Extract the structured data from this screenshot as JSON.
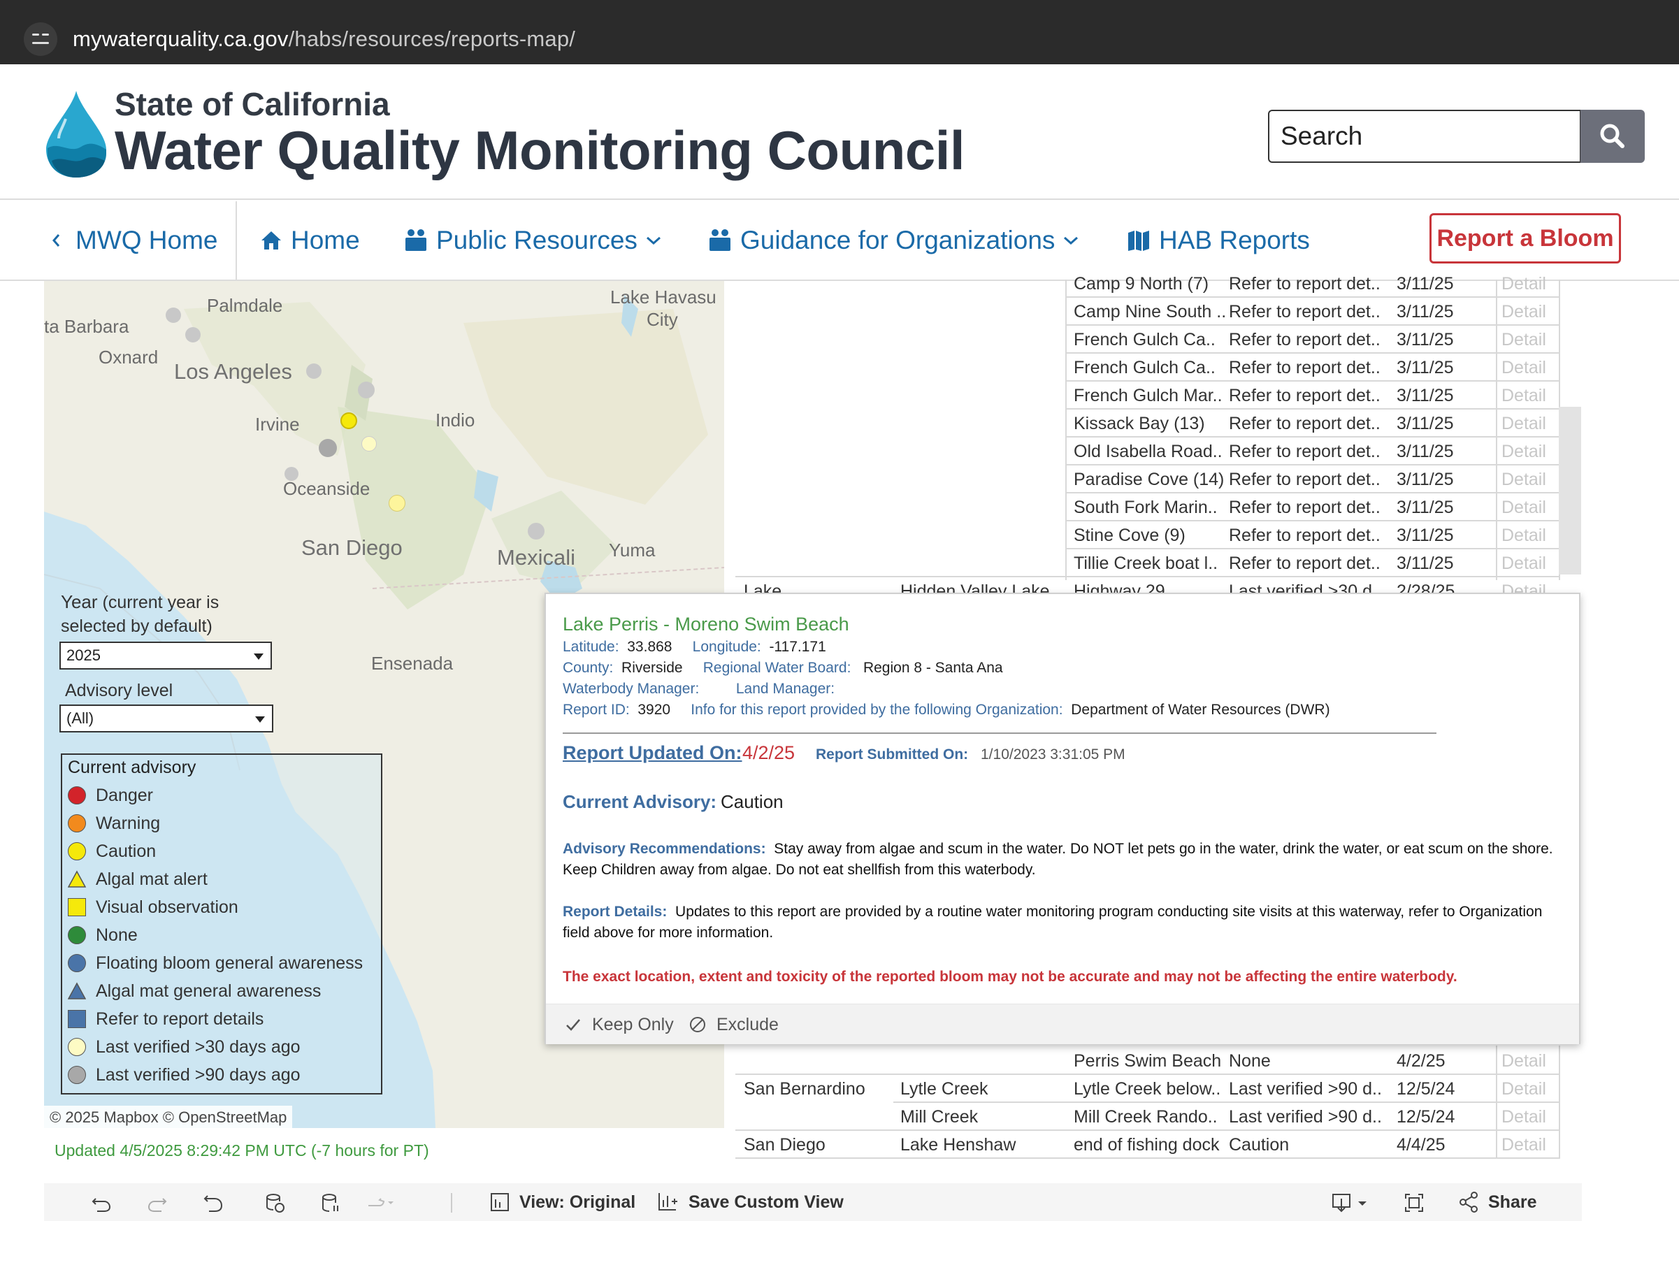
{
  "browser": {
    "url_host": "mywaterquality.ca.gov",
    "url_path": "/habs/resources/reports-map/"
  },
  "header": {
    "state": "State of California",
    "council": "Water Quality Monitoring Council",
    "search_placeholder": "Search"
  },
  "nav": {
    "mwq_home": "MWQ Home",
    "home": "Home",
    "public_resources": "Public Resources",
    "guidance": "Guidance for Organizations",
    "hab_reports": "HAB Reports",
    "report_bloom": "Report a Bloom"
  },
  "map": {
    "labels": [
      "Palmdale",
      "Lake Havasu",
      "City",
      "ta Barbara",
      "Oxnard",
      "Los Angeles",
      "Irvine",
      "Indio",
      "Oceanside",
      "San Diego",
      "Mexicali",
      "Yuma",
      "Ensenada"
    ],
    "attribution": "© 2025 Mapbox  © OpenStreetMap"
  },
  "filters": {
    "year_label": "Year",
    "year_note_1": " (current year is",
    "year_note_2": "selected by default)",
    "year_value": "2025",
    "advisory_label": "Advisory level",
    "advisory_value": "(All)"
  },
  "legend": {
    "title": "Current advisory",
    "items": [
      {
        "label": "Danger",
        "color": "#d2232a",
        "shape": "circle"
      },
      {
        "label": "Warning",
        "color": "#f28a1d",
        "shape": "circle"
      },
      {
        "label": "Caution",
        "color": "#f5e90b",
        "shape": "circle"
      },
      {
        "label": "Algal mat alert",
        "color": "#f5e90b",
        "shape": "triangle"
      },
      {
        "label": "Visual observation",
        "color": "#f5e90b",
        "shape": "square"
      },
      {
        "label": "None",
        "color": "#2e8b3a",
        "shape": "circle"
      },
      {
        "label": "Floating bloom general awareness",
        "color": "#4a74a8",
        "shape": "circle"
      },
      {
        "label": "Algal mat general awareness",
        "color": "#4a74a8",
        "shape": "triangle"
      },
      {
        "label": "Refer to report details",
        "color": "#4a74a8",
        "shape": "square"
      },
      {
        "label": "Last verified >30 days ago",
        "color": "#fdfbc4",
        "shape": "circle"
      },
      {
        "label": "Last verified >90 days ago",
        "color": "#a8a8a8",
        "shape": "circle"
      }
    ]
  },
  "updated": "Updated  4/5/2025 8:29:42 PM UTC (-7 hours for PT)",
  "table": {
    "rows_top": [
      {
        "site": "Camp 9 North (7)",
        "advisory": "Refer to report det..",
        "date": "3/11/25",
        "detail": "Detail"
      },
      {
        "site": "Camp Nine South ..",
        "advisory": "Refer to report det..",
        "date": "3/11/25",
        "detail": "Detail"
      },
      {
        "site": "French Gulch Ca..",
        "advisory": "Refer to report det..",
        "date": "3/11/25",
        "detail": "Detail"
      },
      {
        "site": "French Gulch Ca..",
        "advisory": "Refer to report det..",
        "date": "3/11/25",
        "detail": "Detail"
      },
      {
        "site": "French Gulch Mar..",
        "advisory": "Refer to report det..",
        "date": "3/11/25",
        "detail": "Detail"
      },
      {
        "site": "Kissack Bay (13)",
        "advisory": "Refer to report det..",
        "date": "3/11/25",
        "detail": "Detail"
      },
      {
        "site": "Old Isabella Road..",
        "advisory": "Refer to report det..",
        "date": "3/11/25",
        "detail": "Detail"
      },
      {
        "site": "Paradise Cove (14)",
        "advisory": "Refer to report det..",
        "date": "3/11/25",
        "detail": "Detail"
      },
      {
        "site": "South Fork Marin..",
        "advisory": "Refer to report det..",
        "date": "3/11/25",
        "detail": "Detail"
      },
      {
        "site": "Stine Cove (9)",
        "advisory": "Refer to report det..",
        "date": "3/11/25",
        "detail": "Detail"
      },
      {
        "site": "Tillie Creek boat l..",
        "advisory": "Refer to report det..",
        "date": "3/11/25",
        "detail": "Detail"
      }
    ],
    "lake_row": {
      "county": "Lake",
      "waterbody": "Hidden Valley Lake",
      "site": "Highway 29",
      "advisory": "Last verified >30 d..",
      "date": "2/28/25",
      "detail": "Detail"
    },
    "rows_bottom": [
      {
        "county": "",
        "waterbody": "",
        "site": "Perris Swim Beach",
        "advisory": "None",
        "date": "4/2/25",
        "detail": "Detail"
      },
      {
        "county": "San Bernardino",
        "waterbody": "Lytle Creek",
        "site": "Lytle Creek below..",
        "advisory": "Last verified >90 d..",
        "date": "12/5/24",
        "detail": "Detail"
      },
      {
        "county": "",
        "waterbody": "Mill Creek",
        "site": "Mill Creek Rando..",
        "advisory": "Last verified >90 d..",
        "date": "12/5/24",
        "detail": "Detail"
      },
      {
        "county": "San Diego",
        "waterbody": "Lake Henshaw",
        "site": "end of fishing dock",
        "advisory": "Caution",
        "date": "4/4/25",
        "detail": "Detail"
      }
    ]
  },
  "tooltip": {
    "title": "Lake Perris - Moreno Swim Beach",
    "lat_k": "Latitude:",
    "lat_v": "33.868",
    "lon_k": "Longitude:",
    "lon_v": "-117.171",
    "county_k": "County:",
    "county_v": "Riverside",
    "rwb_k": "Regional Water Board:",
    "rwb_v": "Region 8 - Santa Ana",
    "wbm_k": "Waterbody Manager:",
    "lm_k": "Land Manager:",
    "rid_k": "Report ID:",
    "rid_v": "3920",
    "org_k": "Info for this report provided by the following Organization:",
    "org_v": "Department of Water Resources (DWR)",
    "updated_k": "Report Updated On:",
    "updated_v": "4/2/25",
    "submitted_k": "Report Submitted On:",
    "submitted_v": "1/10/2023 3:31:05 PM",
    "advisory_k": "Current Advisory:",
    "advisory_v": "Caution",
    "rec_k": "Advisory Recommendations:",
    "rec_v": "Stay away from algae and scum in the water. Do NOT let pets go in the water, drink the water, or eat scum on the shore. Keep Children away from algae. Do not eat shellfish from this waterbody.",
    "details_k": "Report Details:",
    "details_v": "Updates to this report are provided by a routine water monitoring program conducting site visits at this waterway, refer to Organization field above for more information.",
    "warning": "The exact location, extent and toxicity of the reported bloom may not be accurate and may not be affecting the entire waterbody.",
    "keep_only": "Keep Only",
    "exclude": "Exclude"
  },
  "toolbar": {
    "view_original": "View: Original",
    "save_custom_view": "Save Custom View",
    "share": "Share"
  }
}
